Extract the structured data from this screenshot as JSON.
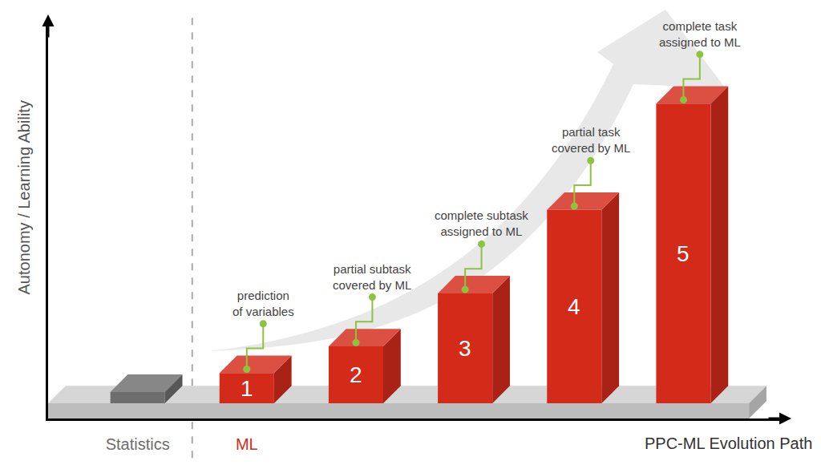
{
  "chart_data": {
    "type": "bar",
    "x_label": "PPC-ML Evolution Path",
    "y_label": "Autonomy / Learning Ability",
    "categories": [
      "Statistics",
      "ML",
      null,
      null,
      null,
      null
    ],
    "values": [
      3,
      8,
      15,
      29,
      51,
      79
    ],
    "colors": [
      "#6d6d6d",
      "#d42a1a",
      "#d42a1a",
      "#d42a1a",
      "#d42a1a",
      "#d42a1a"
    ],
    "bar_labels": [
      null,
      "1",
      "2",
      "3",
      "4",
      "5"
    ],
    "annotations": [
      null,
      "prediction\nof variables",
      "partial subtask\ncovered by ML",
      "complete subtask\nassigned to ML",
      "partial task\ncovered by ML",
      "complete task\nassigned to ML"
    ],
    "ylim": [
      -4,
      100
    ],
    "tick_labels": "x",
    "grid": false
  }
}
